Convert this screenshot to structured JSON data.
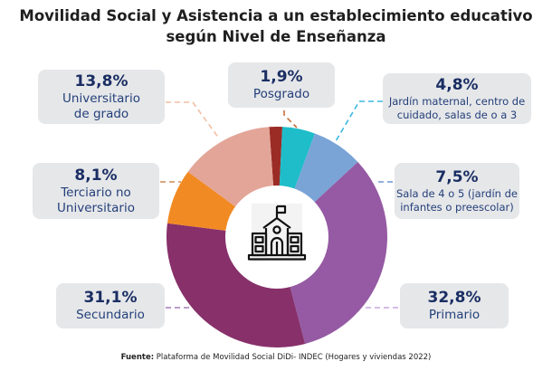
{
  "chart_data": {
    "type": "pie",
    "variant": "donut",
    "title": "Movilidad Social y Asistencia a un establecimiento educativo",
    "subtitle": "según Nivel de Enseñanza",
    "unit": "%",
    "center_icon": "school-building-icon",
    "slices": [
      {
        "key": "posgrado",
        "label": "Posgrado",
        "value": 1.9,
        "display": "1,9%",
        "color": "#9b2b25",
        "leader_color": "#c0703a"
      },
      {
        "key": "jardin-maternal",
        "label": "Jardín maternal, centro de cuidado, salas de o a 3",
        "value": 4.8,
        "display": "4,8%",
        "color": "#1fbcc9",
        "leader_color": "#3bb8e0"
      },
      {
        "key": "sala-4-5",
        "label": "Sala de 4 o 5 (jardín de infantes o preescolar)",
        "value": 7.5,
        "display": "7,5%",
        "color": "#7aa3d6",
        "leader_color": "#6d97d0"
      },
      {
        "key": "primario",
        "label": "Primario",
        "value": 32.8,
        "display": "32,8%",
        "color": "#955aa3",
        "leader_color": "#c7a6dd"
      },
      {
        "key": "secundario",
        "label": "Secundario",
        "value": 31.1,
        "display": "31,1%",
        "color": "#87306a",
        "leader_color": "#a57bb8"
      },
      {
        "key": "terciario",
        "label": "Terciario no Universitario",
        "value": 8.1,
        "display": "8,1%",
        "color": "#f28a24",
        "leader_color": "#d08a52"
      },
      {
        "key": "universitario",
        "label": "Universitario de grado",
        "value": 13.8,
        "display": "13,8%",
        "color": "#e3a598",
        "leader_color": "#f2bfa4"
      }
    ],
    "legend": "callout-boxes"
  },
  "labels": {
    "universitario": {
      "pct": "13,8%",
      "line1": "Universitario",
      "line2": "de grado"
    },
    "posgrado": {
      "pct": "1,9%",
      "line1": "Posgrado"
    },
    "jardin": {
      "pct": "4,8%",
      "line1": "Jardín maternal, centro de",
      "line2": "cuidado, salas de o a 3"
    },
    "terciario": {
      "pct": "8,1%",
      "line1": "Terciario no",
      "line2": "Universitario"
    },
    "sala": {
      "pct": "7,5%",
      "line1": "Sala de 4 o 5 (jardín de",
      "line2": "infantes o preescolar)"
    },
    "secundario": {
      "pct": "31,1%",
      "line1": "Secundario"
    },
    "primario": {
      "pct": "32,8%",
      "line1": "Primario"
    }
  },
  "title": {
    "line1": "Movilidad Social y Asistencia a un establecimiento educativo",
    "line2": "según Nivel de Enseñanza"
  },
  "source": {
    "prefix": "Fuente:",
    "text": " Plataforma de Movilidad Social DiDi- INDEC (Hogares y viviendas 2022)"
  }
}
